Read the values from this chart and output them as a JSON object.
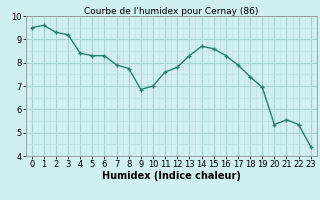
{
  "x": [
    0,
    1,
    2,
    3,
    4,
    5,
    6,
    7,
    8,
    9,
    10,
    11,
    12,
    13,
    14,
    15,
    16,
    17,
    18,
    19,
    20,
    21,
    22,
    23
  ],
  "y": [
    9.5,
    9.6,
    9.3,
    9.2,
    8.4,
    8.3,
    8.3,
    7.9,
    7.75,
    6.85,
    7.0,
    7.6,
    7.8,
    8.3,
    8.7,
    8.6,
    8.3,
    7.9,
    7.4,
    6.95,
    5.35,
    5.55,
    5.35,
    4.4
  ],
  "line_color": "#2e7d6e",
  "marker": "+",
  "marker_size": 3,
  "bg_color": "#d0efef",
  "grid_major_color": "#aad4d4",
  "grid_minor_color": "#c0e4e4",
  "title": "Courbe de l'humidex pour Cernay (86)",
  "xlabel": "Humidex (Indice chaleur)",
  "ylabel": "",
  "xlim": [
    -0.5,
    23.5
  ],
  "ylim": [
    4,
    10
  ],
  "yticks": [
    4,
    5,
    6,
    7,
    8,
    9,
    10
  ],
  "xticks": [
    0,
    1,
    2,
    3,
    4,
    5,
    6,
    7,
    8,
    9,
    10,
    11,
    12,
    13,
    14,
    15,
    16,
    17,
    18,
    19,
    20,
    21,
    22,
    23
  ],
  "title_fontsize": 6.5,
  "label_fontsize": 7,
  "tick_fontsize": 6
}
